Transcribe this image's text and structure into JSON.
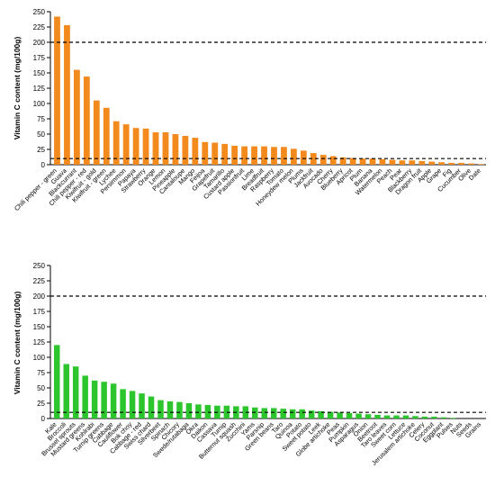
{
  "chart_data": [
    {
      "type": "bar",
      "ylabel": "Vitamin C content (mg/100g)",
      "ylim": [
        0,
        250
      ],
      "yticks": [
        0,
        25,
        50,
        75,
        100,
        125,
        150,
        175,
        200,
        225,
        250
      ],
      "reference_lines": [
        200,
        10
      ],
      "color": "#F28A1E",
      "grid": false,
      "categories": [
        "Chili pepper - green",
        "Guava",
        "Blackcurrant",
        "Chili pepper - red",
        "Kiwifruit - gold",
        "Kiwifruit - green",
        "Lychee",
        "Persimmon",
        "Papaya",
        "Strawberry",
        "Orange",
        "Lemon",
        "Pineapple",
        "Cantaloupe",
        "Mango",
        "Feijoa",
        "Grapefruit",
        "Tamarillo",
        "Custard apple",
        "Passionfruit",
        "Lime",
        "Breadfruit",
        "Raspberry",
        "Tomato",
        "Honeydew melon",
        "Plums",
        "Jackfruit",
        "Avocado",
        "Cherry",
        "Blueberry",
        "Apricot",
        "Plum",
        "Banana",
        "Watermelon",
        "Peach",
        "Pear",
        "Blackberry",
        "Dragon fruit",
        "Apple",
        "Grape",
        "Fig",
        "Cucumber",
        "Olive",
        "Date"
      ],
      "values": [
        242,
        228,
        155,
        144,
        105,
        93,
        71,
        66,
        60,
        59,
        53,
        53,
        50,
        47,
        44,
        37,
        36,
        34,
        31,
        30,
        30,
        30,
        29,
        29,
        26,
        23,
        19,
        16,
        14,
        12,
        11,
        10,
        10,
        9,
        8,
        7,
        7,
        6,
        5,
        4,
        3,
        3,
        2,
        1
      ]
    },
    {
      "type": "bar",
      "ylabel": "Vitamin C content (mg/100g)",
      "ylim": [
        0,
        250
      ],
      "yticks": [
        0,
        25,
        50,
        75,
        100,
        125,
        150,
        175,
        200,
        225,
        250
      ],
      "reference_lines": [
        200,
        10
      ],
      "color": "#2DC52D",
      "grid": false,
      "categories": [
        "Kale",
        "Broccoli",
        "Brussel sprouts",
        "Mustard greens",
        "Kohlrabi",
        "Turnip greens",
        "Cabbage",
        "Cauliflower",
        "Bok choy",
        "Cabbage - red",
        "Swiss chard",
        "Silverbeet",
        "Spinach",
        "Chicory",
        "Swede/rutabaga",
        "Okra",
        "Daikon",
        "Cassava",
        "Turnip",
        "Butternut squash",
        "Zucchini",
        "Yams",
        "Parsnip",
        "Green beans",
        "Taro",
        "Quinoa",
        "Potato",
        "Sweet potato",
        "Leek",
        "Globe artichoke",
        "Peas",
        "Pumpkin",
        "Asparagus",
        "Onion",
        "Beetroot",
        "Taro leaves",
        "Sweet corn",
        "Lettuce",
        "Jerusalem artichoke",
        "Celery",
        "Coconut",
        "Eggplant",
        "Pulses",
        "Nuts",
        "Seeds",
        "Grains"
      ],
      "values": [
        120,
        89,
        85,
        70,
        62,
        60,
        57,
        48,
        45,
        41,
        36,
        30,
        28,
        27,
        25,
        23,
        22,
        21,
        21,
        20,
        20,
        18,
        17,
        17,
        16,
        15,
        15,
        13,
        12,
        11,
        10,
        9,
        8,
        7,
        6,
        5,
        5,
        5,
        4,
        3,
        3,
        2,
        1,
        0,
        0,
        0
      ]
    }
  ]
}
